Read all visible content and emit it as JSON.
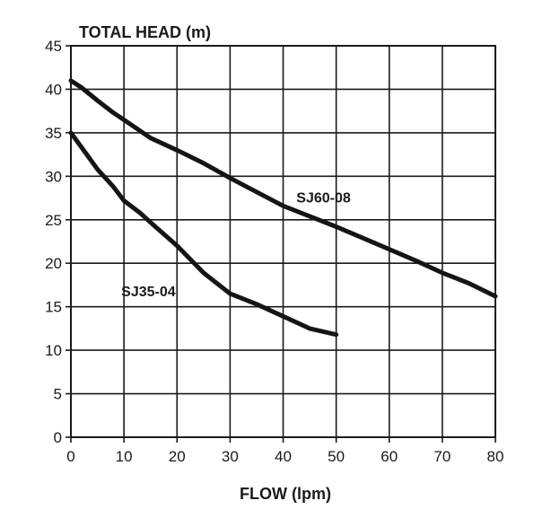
{
  "chart_data": {
    "type": "line",
    "ylabel": "TOTAL HEAD (m)",
    "xlabel": "FLOW (lpm)",
    "xlim": [
      0,
      80
    ],
    "ylim": [
      0,
      45
    ],
    "x_ticks": [
      0,
      10,
      20,
      30,
      40,
      50,
      60,
      70,
      80
    ],
    "y_ticks": [
      0,
      5,
      10,
      15,
      20,
      25,
      30,
      35,
      40,
      45
    ],
    "grid": true,
    "series": [
      {
        "name": "SJ60-08",
        "x": [
          0,
          2,
          5,
          8,
          10,
          15,
          20,
          25,
          30,
          35,
          40,
          45,
          50,
          55,
          60,
          65,
          70,
          75,
          80
        ],
        "y": [
          41,
          40.2,
          38.7,
          37.3,
          36.5,
          34.4,
          33,
          31.5,
          29.8,
          28.2,
          26.6,
          25.4,
          24.2,
          22.9,
          21.6,
          20.3,
          18.9,
          17.7,
          16.2
        ]
      },
      {
        "name": "SJ35-04",
        "x": [
          0,
          3,
          5,
          8,
          10,
          13,
          15,
          20,
          25,
          30,
          35,
          40,
          45,
          50
        ],
        "y": [
          35,
          32.5,
          30.8,
          28.8,
          27.2,
          25.8,
          24.7,
          22,
          18.9,
          16.5,
          15.3,
          13.9,
          12.5,
          11.8
        ]
      }
    ]
  }
}
